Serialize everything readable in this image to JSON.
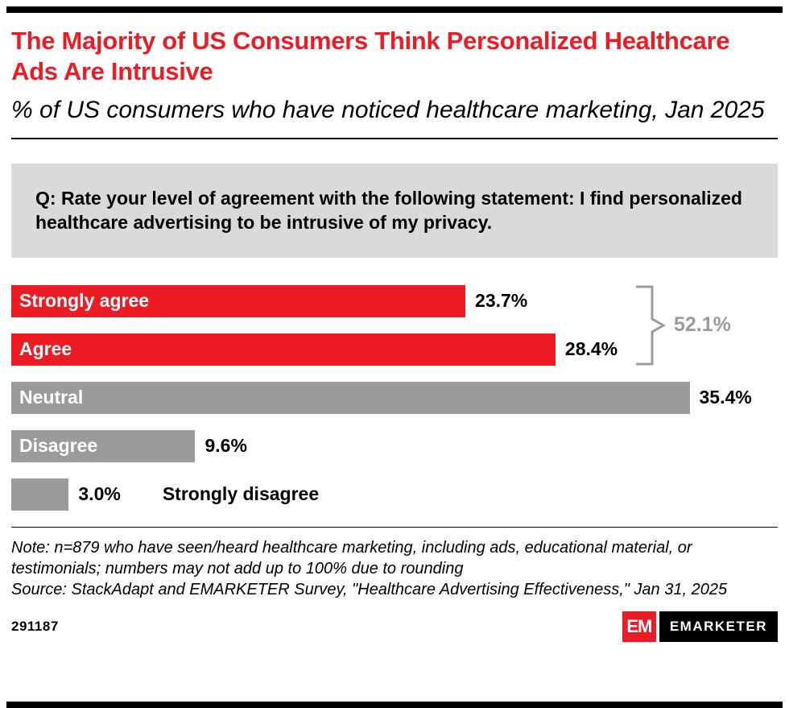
{
  "header": {
    "title": "The Majority of US Consumers Think Personalized Healthcare Ads Are Intrusive",
    "subtitle": "% of US consumers who have noticed healthcare marketing, Jan 2025"
  },
  "question": "Q: Rate your level of agreement with the following statement: I find personalized healthcare advertising to be intrusive of my privacy.",
  "chart_data": {
    "type": "bar",
    "orientation": "horizontal",
    "title": "The Majority of US Consumers Think Personalized Healthcare Ads Are Intrusive",
    "subtitle": "% of US consumers who have noticed healthcare marketing, Jan 2025",
    "categories": [
      "Strongly agree",
      "Agree",
      "Neutral",
      "Disagree",
      "Strongly disagree"
    ],
    "values": [
      23.7,
      28.4,
      35.4,
      9.6,
      3.0
    ],
    "value_labels": [
      "23.7%",
      "28.4%",
      "35.4%",
      "9.6%",
      "3.0%"
    ],
    "bar_colors": [
      "#ed1c24",
      "#ed1c24",
      "#9b9b9b",
      "#9b9b9b",
      "#9b9b9b"
    ],
    "xlim": [
      0,
      40
    ],
    "grid": "off",
    "legend": "none",
    "annotation": {
      "label": "52.1%",
      "grouped_categories": [
        "Strongly agree",
        "Agree"
      ],
      "meaning": "combined share of Strongly agree + Agree"
    }
  },
  "notes": {
    "note": "Note: n=879 who have seen/heard healthcare marketing, including ads, educational material, or testimonials; numbers may not add up to 100% due to rounding",
    "source": "Source: StackAdapt and EMARKETER Survey, \"Healthcare Advertising Effectiveness,\" Jan 31, 2025"
  },
  "footer": {
    "chart_id": "291187",
    "logo_em": "EM",
    "logo_text": "EMARKETER"
  },
  "colors": {
    "red": "#ed1c24",
    "gray_bar": "#9b9b9b",
    "gray_box": "#dadada",
    "bracket": "#9b9b9b"
  }
}
